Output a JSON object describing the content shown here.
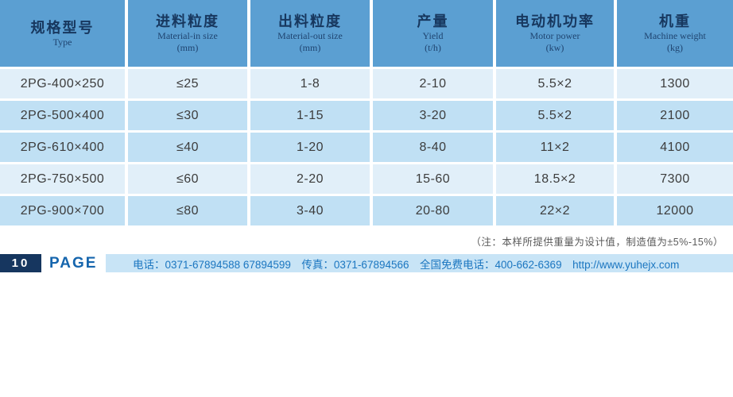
{
  "table": {
    "columns": [
      {
        "zh": "规格型号",
        "en": "Type",
        "unit": ""
      },
      {
        "zh": "进料粒度",
        "en": "Material-in size",
        "unit": "(mm)"
      },
      {
        "zh": "出料粒度",
        "en": "Material-out size",
        "unit": "(mm)"
      },
      {
        "zh": "产量",
        "en": "Yield",
        "unit": "(t/h)"
      },
      {
        "zh": "电动机功率",
        "en": "Motor power",
        "unit": "(kw)"
      },
      {
        "zh": "机重",
        "en": "Machine weight",
        "unit": "(kg)"
      }
    ],
    "rows": [
      [
        "2PG-400×250",
        "≤25",
        "1-8",
        "2-10",
        "5.5×2",
        "1300"
      ],
      [
        "2PG-500×400",
        "≤30",
        "1-15",
        "3-20",
        "5.5×2",
        "2100"
      ],
      [
        "2PG-610×400",
        "≤40",
        "1-20",
        "8-40",
        "11×2",
        "4100"
      ],
      [
        "2PG-750×500",
        "≤60",
        "2-20",
        "15-60",
        "18.5×2",
        "7300"
      ],
      [
        "2PG-900×700",
        "≤80",
        "3-40",
        "20-80",
        "22×2",
        "12000"
      ]
    ]
  },
  "note": "（注：本样所提供重量为设计值，制造值为±5%-15%）",
  "footer": {
    "page_number": "10",
    "page_label": "PAGE",
    "contact": "电话：0371-67894588 67894599　传真：0371-67894566　全国免费电话：400-662-6369　http://www.yuhejx.com"
  },
  "colors": {
    "header_bg": "#5b9fd2",
    "row_light": "#e1eff9",
    "row_medium": "#c0e0f4",
    "header_text": "#17375e",
    "cell_text": "#3c3c3c",
    "footer_bar_bg": "#c8e4f6",
    "footer_text": "#1b76c0",
    "page_box_bg": "#16365f",
    "page_label_text": "#1565ad"
  }
}
